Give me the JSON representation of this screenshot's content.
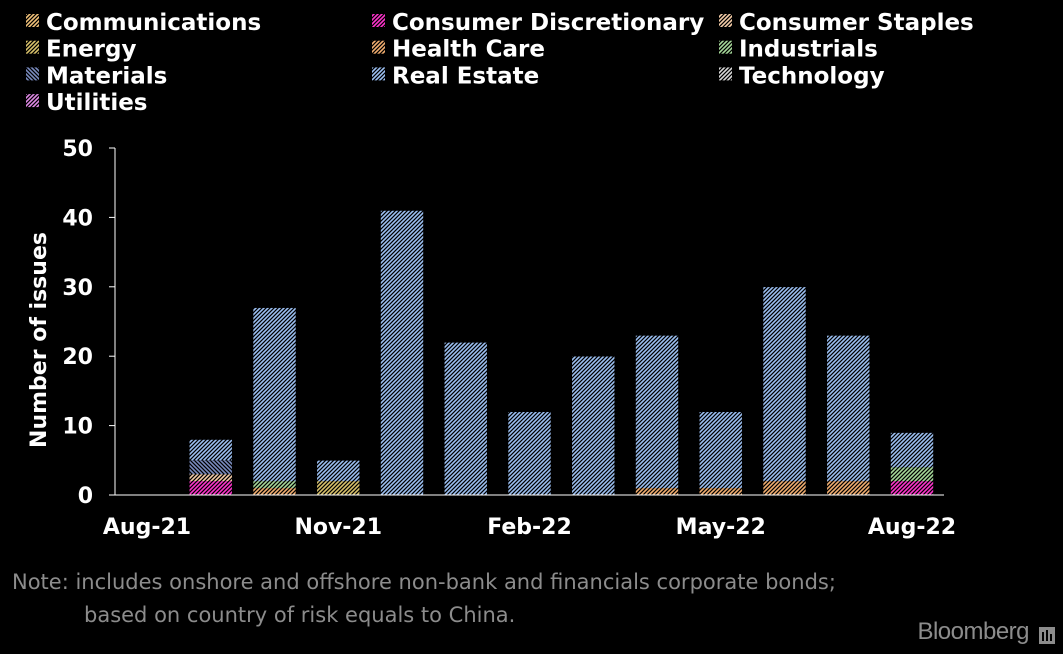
{
  "chart_data": {
    "type": "bar",
    "stacked": true,
    "categories": [
      "Aug-21",
      "Sep-21",
      "Oct-21",
      "Nov-21",
      "Dec-21",
      "Jan-22",
      "Feb-22",
      "Mar-22",
      "Apr-22",
      "May-22",
      "Jun-22",
      "Jul-22",
      "Aug-22"
    ],
    "x_tick_labels": [
      "Aug-21",
      "Nov-21",
      "Feb-22",
      "May-22",
      "Aug-22"
    ],
    "y_ticks": [
      "0",
      "10",
      "20",
      "30",
      "40",
      "50"
    ],
    "ylim": [
      0,
      50
    ],
    "ylabel": "Number of issues",
    "legend_position": "top",
    "series": [
      {
        "name": "Communications",
        "color": "#f2c27a",
        "values": [
          0,
          0,
          0,
          0,
          0,
          0,
          0,
          0,
          0,
          0,
          0,
          0,
          0
        ]
      },
      {
        "name": "Consumer Discretionary",
        "color": "#ff33cc",
        "values": [
          0,
          2,
          0,
          0,
          0,
          0,
          0,
          0,
          0,
          0,
          0,
          0,
          2
        ]
      },
      {
        "name": "Consumer Staples",
        "color": "#f5cda8",
        "values": [
          0,
          1,
          0,
          0,
          0,
          0,
          0,
          0,
          0,
          0,
          0,
          0,
          0
        ]
      },
      {
        "name": "Energy",
        "color": "#d9c26b",
        "values": [
          0,
          0,
          0,
          2,
          0,
          0,
          0,
          0,
          0,
          0,
          0,
          0,
          0
        ]
      },
      {
        "name": "Health Care",
        "color": "#f2ae70",
        "values": [
          0,
          0,
          1,
          0,
          0,
          0,
          0,
          0,
          1,
          1,
          2,
          2,
          0
        ]
      },
      {
        "name": "Industrials",
        "color": "#a6d99a",
        "values": [
          0,
          0,
          1,
          0,
          0,
          0,
          0,
          0,
          0,
          0,
          0,
          0,
          2
        ]
      },
      {
        "name": "Materials",
        "color": "#7a8cc0",
        "values": [
          0,
          2,
          0,
          0,
          0,
          0,
          0,
          0,
          0,
          0,
          0,
          0,
          0
        ]
      },
      {
        "name": "Real Estate",
        "color": "#9cc0f2",
        "values": [
          0,
          3,
          25,
          3,
          41,
          22,
          12,
          20,
          22,
          11,
          28,
          21,
          5
        ]
      },
      {
        "name": "Technology",
        "color": "#d9d9d9",
        "values": [
          0,
          0,
          0,
          0,
          0,
          0,
          0,
          0,
          0,
          0,
          0,
          0,
          0
        ]
      },
      {
        "name": "Utilities",
        "color": "#e08ae6",
        "values": [
          0,
          0,
          0,
          0,
          0,
          0,
          0,
          0,
          0,
          0,
          0,
          0,
          0
        ]
      }
    ]
  },
  "note": {
    "line1": "Note: includes onshore and offshore non-bank and financials corporate bonds;",
    "line2": "based on country of risk equals to China."
  },
  "source": "Bloomberg"
}
